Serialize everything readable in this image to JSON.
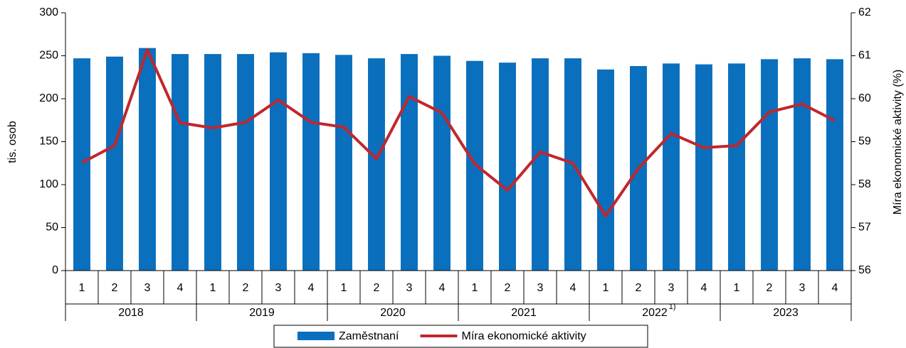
{
  "chart_data": {
    "type": "bar",
    "ylabel": "tis. osob",
    "y2label": "Míra ekonomické aktivity (%)",
    "categories": [
      "1",
      "2",
      "3",
      "4",
      "1",
      "2",
      "3",
      "4",
      "1",
      "2",
      "3",
      "4",
      "1",
      "2",
      "3",
      "4",
      "1",
      "2",
      "3",
      "4",
      "1",
      "2",
      "3",
      "4"
    ],
    "groups": [
      {
        "name": "2018"
      },
      {
        "name": "2019"
      },
      {
        "name": "2020"
      },
      {
        "name": "2021"
      },
      {
        "name": "2022",
        "note": "1)"
      },
      {
        "name": "2023"
      }
    ],
    "series": [
      {
        "name": "Zaměstnaní",
        "type": "bar",
        "color": "#0a6fbd",
        "values": [
          247,
          249,
          259,
          252,
          252,
          252,
          254,
          253,
          251,
          247,
          252,
          250,
          244,
          242,
          247,
          247,
          234,
          238,
          241,
          240,
          241,
          246,
          247,
          246
        ]
      },
      {
        "name": "Míra ekonomické aktivity",
        "type": "line",
        "axis": "y2",
        "color": "#c0272d",
        "values": [
          58.51,
          58.91,
          61.14,
          59.44,
          59.32,
          59.45,
          59.97,
          59.45,
          59.34,
          58.6,
          60.05,
          59.67,
          58.48,
          57.87,
          58.76,
          58.5,
          57.27,
          58.38,
          59.19,
          58.86,
          58.91,
          59.69,
          59.88,
          59.49
        ]
      }
    ],
    "ylim": [
      0,
      300
    ],
    "yticks": [
      0,
      50,
      100,
      150,
      200,
      250,
      300
    ],
    "y2lim": [
      56,
      62
    ],
    "y2ticks": [
      56,
      57,
      58,
      59,
      60,
      61,
      62
    ],
    "legend": "bottom"
  }
}
